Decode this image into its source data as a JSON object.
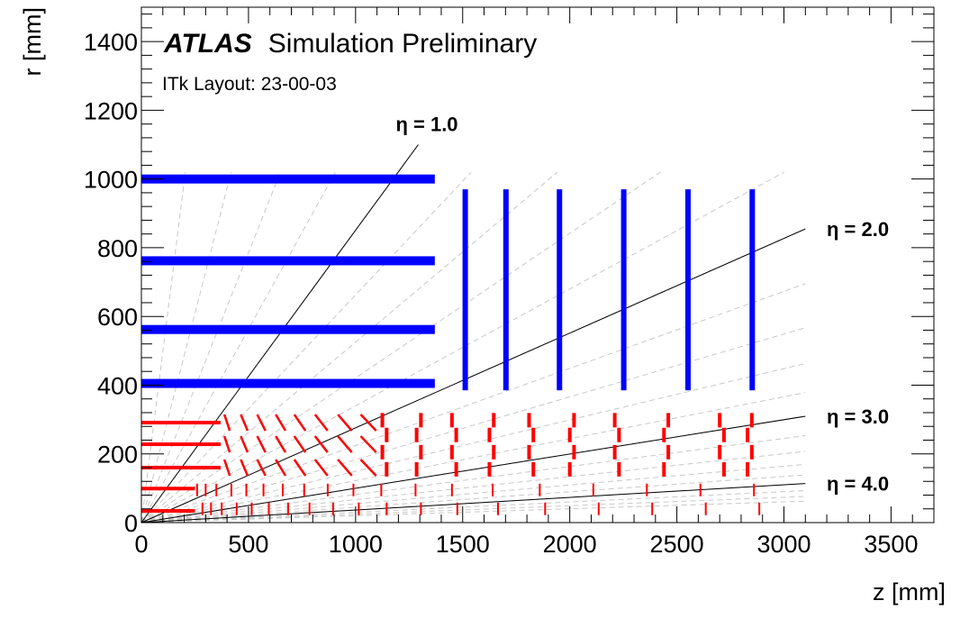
{
  "chart_data": {
    "type": "scatter",
    "title_bold": "ATLAS",
    "title_rest": "Simulation Preliminary",
    "subtitle": "ITk Layout: 23-00-03",
    "xlabel": "z [mm]",
    "ylabel": "r [mm]",
    "xlim": [
      0,
      3700
    ],
    "ylim": [
      0,
      1500
    ],
    "xticks": [
      0,
      500,
      1000,
      1500,
      2000,
      2500,
      3000,
      3500
    ],
    "yticks": [
      0,
      200,
      400,
      600,
      800,
      1000,
      1200,
      1400
    ],
    "eta_lines": [
      {
        "eta": 1.0,
        "label": "η = 1.0"
      },
      {
        "eta": 2.0,
        "label": "η = 2.0"
      },
      {
        "eta": 3.0,
        "label": "η = 3.0"
      },
      {
        "eta": 4.0,
        "label": "η = 4.0"
      }
    ],
    "strip_barrel": {
      "color": "#0000ff",
      "layers": [
        {
          "r": 405,
          "z_min": 0,
          "z_max": 1370
        },
        {
          "r": 562,
          "z_min": 0,
          "z_max": 1370
        },
        {
          "r": 762,
          "z_min": 0,
          "z_max": 1370
        },
        {
          "r": 1000,
          "z_min": 0,
          "z_max": 1370
        }
      ]
    },
    "strip_endcap": {
      "color": "#0000ff",
      "disks": [
        {
          "z": 1512,
          "r_min": 385,
          "r_max": 970
        },
        {
          "z": 1702,
          "r_min": 385,
          "r_max": 970
        },
        {
          "z": 1952,
          "r_min": 385,
          "r_max": 970
        },
        {
          "z": 2252,
          "r_min": 385,
          "r_max": 970
        },
        {
          "z": 2552,
          "r_min": 385,
          "r_max": 970
        },
        {
          "z": 2852,
          "r_min": 385,
          "r_max": 970
        }
      ]
    },
    "pixel_barrel": {
      "color": "#ff0000",
      "layers": [
        {
          "r": 34,
          "z_min": 0,
          "z_max": 250
        },
        {
          "r": 99,
          "z_min": 0,
          "z_max": 250
        },
        {
          "r": 160,
          "z_min": 0,
          "z_max": 370
        },
        {
          "r": 228,
          "z_min": 0,
          "z_max": 370
        },
        {
          "r": 291,
          "z_min": 0,
          "z_max": 370
        }
      ]
    },
    "pixel_inclined_rings": {
      "color": "#ff0000",
      "r_values": [
        160,
        228,
        291
      ],
      "z_values": [
        400,
        480,
        560,
        650,
        740,
        840,
        950,
        1060
      ]
    },
    "pixel_endcap_rings": {
      "color": "#ff0000",
      "outer": {
        "r_values": [
          155,
          205,
          255,
          298
        ],
        "z_values": [
          1145,
          1305,
          1470,
          1645,
          1830,
          2020,
          2230,
          2460,
          2720,
          2850
        ]
      },
      "inner": {
        "r_values": [
          40,
          95
        ],
        "z_values": [
          260,
          300,
          350,
          420,
          490,
          570,
          660,
          760,
          870,
          990,
          1120,
          1280,
          1450,
          1640,
          1860,
          2110,
          2360,
          2610,
          2860
        ]
      }
    }
  }
}
